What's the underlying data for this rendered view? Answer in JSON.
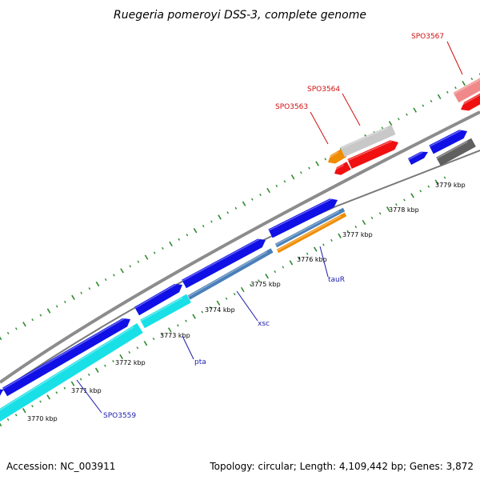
{
  "title": "Ruegeria pomeroyi DSS-3, complete genome",
  "footer": {
    "accession": "Accession: NC_003911",
    "summary": "Topology: circular; Length: 4,109,442 bp; Genes: 3,872"
  },
  "colors": {
    "tick": "#2e8b2e",
    "backbone": "#8c8c8c",
    "blue": "#1010e6",
    "cyan": "#18e0e6",
    "steel": "#4a7fb8",
    "orange": "#f08c00",
    "red": "#f01010",
    "pink": "#f08a8a",
    "lightgray": "#c8c8c8",
    "darkgray": "#606060",
    "label_blue": "#1a1ab0",
    "label_red": "#d01010"
  },
  "kbp_labels": [
    "3770 kbp",
    "3771 kbp",
    "3772 kbp",
    "3773 kbp",
    "3774 kbp",
    "3775 kbp",
    "3776 kbp",
    "3777 kbp",
    "3778 kbp",
    "3779 kbp"
  ],
  "gene_labels": [
    {
      "name": "SPO3559",
      "color": "label_blue"
    },
    {
      "name": "pta",
      "color": "label_blue"
    },
    {
      "name": "xsc",
      "color": "label_blue"
    },
    {
      "name": "tauR",
      "color": "label_blue"
    },
    {
      "name": "SPO3563",
      "color": "label_red"
    },
    {
      "name": "SPO3564",
      "color": "label_red"
    },
    {
      "name": "SPO3567",
      "color": "label_red"
    }
  ]
}
